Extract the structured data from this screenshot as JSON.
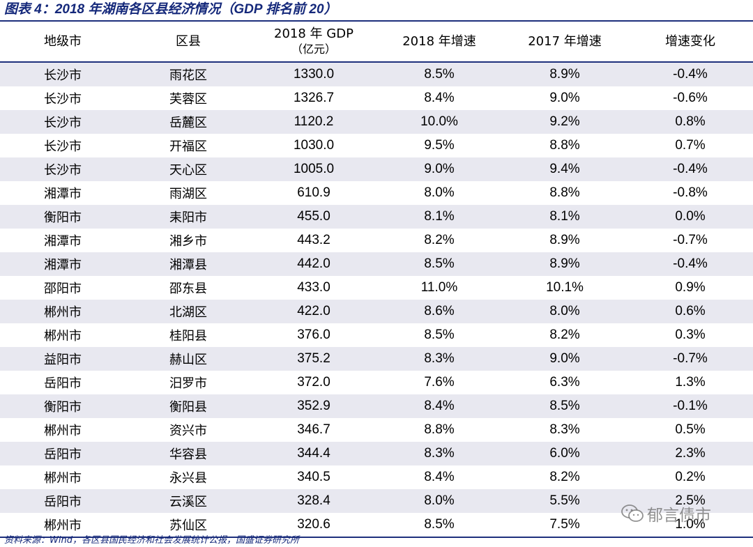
{
  "title": "图表 4：2018 年湖南各区县经济情况（GDP 排名前 20）",
  "table": {
    "headers": {
      "city": "地级市",
      "county": "区县",
      "gdp_line1": "2018 年 GDP",
      "gdp_line2": "（亿元）",
      "growth_2018": "2018 年增速",
      "growth_2017": "2017 年增速",
      "growth_change": "增速变化"
    },
    "rows": [
      {
        "city": "长沙市",
        "county": "雨花区",
        "gdp": "1330.0",
        "g2018": "8.5%",
        "g2017": "8.9%",
        "change": "-0.4%"
      },
      {
        "city": "长沙市",
        "county": "芙蓉区",
        "gdp": "1326.7",
        "g2018": "8.4%",
        "g2017": "9.0%",
        "change": "-0.6%"
      },
      {
        "city": "长沙市",
        "county": "岳麓区",
        "gdp": "1120.2",
        "g2018": "10.0%",
        "g2017": "9.2%",
        "change": "0.8%"
      },
      {
        "city": "长沙市",
        "county": "开福区",
        "gdp": "1030.0",
        "g2018": "9.5%",
        "g2017": "8.8%",
        "change": "0.7%"
      },
      {
        "city": "长沙市",
        "county": "天心区",
        "gdp": "1005.0",
        "g2018": "9.0%",
        "g2017": "9.4%",
        "change": "-0.4%"
      },
      {
        "city": "湘潭市",
        "county": "雨湖区",
        "gdp": "610.9",
        "g2018": "8.0%",
        "g2017": "8.8%",
        "change": "-0.8%"
      },
      {
        "city": "衡阳市",
        "county": "耒阳市",
        "gdp": "455.0",
        "g2018": "8.1%",
        "g2017": "8.1%",
        "change": "0.0%"
      },
      {
        "city": "湘潭市",
        "county": "湘乡市",
        "gdp": "443.2",
        "g2018": "8.2%",
        "g2017": "8.9%",
        "change": "-0.7%"
      },
      {
        "city": "湘潭市",
        "county": "湘潭县",
        "gdp": "442.0",
        "g2018": "8.5%",
        "g2017": "8.9%",
        "change": "-0.4%"
      },
      {
        "city": "邵阳市",
        "county": "邵东县",
        "gdp": "433.0",
        "g2018": "11.0%",
        "g2017": "10.1%",
        "change": "0.9%"
      },
      {
        "city": "郴州市",
        "county": "北湖区",
        "gdp": "422.0",
        "g2018": "8.6%",
        "g2017": "8.0%",
        "change": "0.6%"
      },
      {
        "city": "郴州市",
        "county": "桂阳县",
        "gdp": "376.0",
        "g2018": "8.5%",
        "g2017": "8.2%",
        "change": "0.3%"
      },
      {
        "city": "益阳市",
        "county": "赫山区",
        "gdp": "375.2",
        "g2018": "8.3%",
        "g2017": "9.0%",
        "change": "-0.7%"
      },
      {
        "city": "岳阳市",
        "county": "汨罗市",
        "gdp": "372.0",
        "g2018": "7.6%",
        "g2017": "6.3%",
        "change": "1.3%"
      },
      {
        "city": "衡阳市",
        "county": "衡阳县",
        "gdp": "352.9",
        "g2018": "8.4%",
        "g2017": "8.5%",
        "change": "-0.1%"
      },
      {
        "city": "郴州市",
        "county": "资兴市",
        "gdp": "346.7",
        "g2018": "8.8%",
        "g2017": "8.3%",
        "change": "0.5%"
      },
      {
        "city": "岳阳市",
        "county": "华容县",
        "gdp": "344.4",
        "g2018": "8.3%",
        "g2017": "6.0%",
        "change": "2.3%"
      },
      {
        "city": "郴州市",
        "county": "永兴县",
        "gdp": "340.5",
        "g2018": "8.4%",
        "g2017": "8.2%",
        "change": "0.2%"
      },
      {
        "city": "岳阳市",
        "county": "云溪区",
        "gdp": "328.4",
        "g2018": "8.0%",
        "g2017": "5.5%",
        "change": "2.5%"
      },
      {
        "city": "郴州市",
        "county": "苏仙区",
        "gdp": "320.6",
        "g2018": "8.5%",
        "g2017": "7.5%",
        "change": "1.0%"
      }
    ]
  },
  "source": "资料来源：Wind，各区县国民经济和社会发展统计公报，国盛证券研究所",
  "watermark": {
    "text": "郁言债市",
    "icon": "wechat-icon"
  },
  "colors": {
    "accent": "#1d2f7c",
    "title": "#14287a",
    "stripe": "#e8e8f0"
  }
}
